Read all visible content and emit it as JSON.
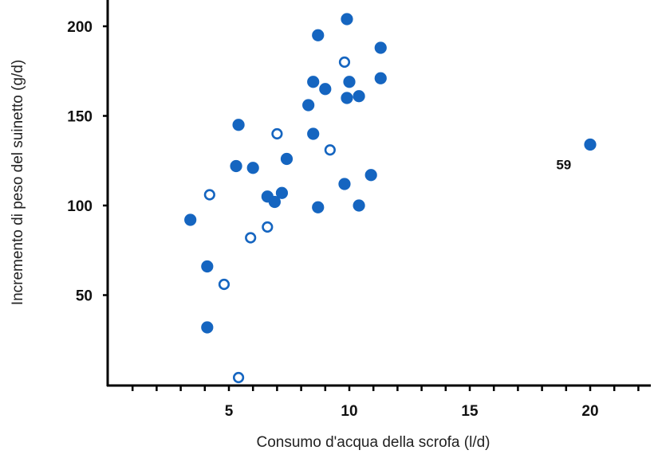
{
  "chart_data": {
    "type": "scatter",
    "title": "",
    "xlabel": "Consumo d'acqua della scrofa (l/d)",
    "ylabel": "Incremento di peso del suinetto (g/d)",
    "xlim": [
      0,
      22.5
    ],
    "ylim": [
      0,
      215
    ],
    "x_ticks": [
      5,
      10,
      15,
      20
    ],
    "x_minor_tick_step": 1,
    "y_ticks": [
      50,
      100,
      150,
      200
    ],
    "grid": false,
    "legend": null,
    "marker_color": "#1565C0",
    "series": [
      {
        "name": "filled",
        "marker": "filled-circle",
        "points": [
          {
            "x": 9.9,
            "y": 204
          },
          {
            "x": 8.7,
            "y": 195
          },
          {
            "x": 11.3,
            "y": 188
          },
          {
            "x": 8.5,
            "y": 169
          },
          {
            "x": 10.0,
            "y": 169
          },
          {
            "x": 11.3,
            "y": 171
          },
          {
            "x": 9.0,
            "y": 165
          },
          {
            "x": 9.9,
            "y": 160
          },
          {
            "x": 10.4,
            "y": 161
          },
          {
            "x": 8.3,
            "y": 156
          },
          {
            "x": 5.4,
            "y": 145
          },
          {
            "x": 8.5,
            "y": 140
          },
          {
            "x": 20.0,
            "y": 134
          },
          {
            "x": 7.4,
            "y": 126
          },
          {
            "x": 5.3,
            "y": 122
          },
          {
            "x": 6.0,
            "y": 121
          },
          {
            "x": 10.9,
            "y": 117
          },
          {
            "x": 9.8,
            "y": 112
          },
          {
            "x": 6.6,
            "y": 105
          },
          {
            "x": 7.2,
            "y": 107
          },
          {
            "x": 6.9,
            "y": 102
          },
          {
            "x": 3.4,
            "y": 92
          },
          {
            "x": 8.7,
            "y": 99
          },
          {
            "x": 10.4,
            "y": 100
          },
          {
            "x": 4.1,
            "y": 66
          },
          {
            "x": 4.1,
            "y": 32
          }
        ]
      },
      {
        "name": "open",
        "marker": "open-circle",
        "points": [
          {
            "x": 9.8,
            "y": 180
          },
          {
            "x": 7.0,
            "y": 140
          },
          {
            "x": 9.2,
            "y": 131
          },
          {
            "x": 4.2,
            "y": 106
          },
          {
            "x": 6.6,
            "y": 88
          },
          {
            "x": 5.9,
            "y": 82
          },
          {
            "x": 4.8,
            "y": 56
          },
          {
            "x": 5.4,
            "y": 4
          }
        ]
      }
    ],
    "annotations": [
      {
        "text": "59",
        "x": 18.9,
        "y": 123,
        "refers_to": {
          "x": 20.0,
          "y": 134
        }
      }
    ]
  }
}
